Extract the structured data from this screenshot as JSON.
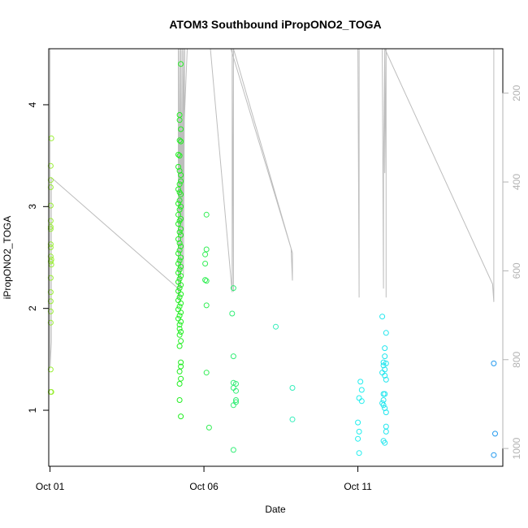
{
  "chart_data": {
    "type": "scatter",
    "title": "ATOM3 Southbound iPropONO2_TOGA",
    "xlabel": "Date",
    "ylabel": "iPropONO2_TOGA",
    "x_axis": {
      "type": "date",
      "range": [
        "2017-09-30T23:00",
        "2017-10-15T17:00"
      ],
      "ticks": [
        {
          "value": "2017-10-01",
          "label": "Oct 01"
        },
        {
          "value": "2017-10-06",
          "label": "Oct 06"
        },
        {
          "value": "2017-10-11",
          "label": "Oct 11"
        }
      ]
    },
    "y_axis": {
      "range": [
        0.45,
        4.55
      ],
      "ticks": [
        1,
        2,
        3,
        4
      ]
    },
    "y2_axis": {
      "reversed": true,
      "range": [
        1040,
        100
      ],
      "ticks": [
        200,
        400,
        600,
        800,
        1000
      ],
      "color": "#b3b3b3"
    },
    "colors": {
      "Oct01": "#99ee33",
      "Oct05": "#22ee22",
      "Oct06": "#33ee55",
      "Oct07": "#33ee77",
      "Oct08": "#33eebb",
      "Oct11": "#22eeee",
      "Oct12": "#22e6ee",
      "Oct15": "#2299ee",
      "profile": "#bdbdbd"
    },
    "series": [
      {
        "color_key": "Oct01",
        "points": [
          [
            "2017-10-01T01:00",
            3.67
          ],
          [
            "2017-10-01T00:30",
            3.4
          ],
          [
            "2017-10-01T00:30",
            3.26
          ],
          [
            "2017-10-01T00:30",
            3.19
          ],
          [
            "2017-10-01T00:30",
            3.01
          ],
          [
            "2017-10-01T00:30",
            2.86
          ],
          [
            "2017-10-01T00:30",
            2.8
          ],
          [
            "2017-10-01T00:30",
            2.78
          ],
          [
            "2017-10-01T00:30",
            2.63
          ],
          [
            "2017-10-01T00:30",
            2.6
          ],
          [
            "2017-10-01T00:30",
            2.51
          ],
          [
            "2017-10-01T00:30",
            2.46
          ],
          [
            "2017-10-01T01:00",
            2.48
          ],
          [
            "2017-10-01T01:00",
            2.43
          ],
          [
            "2017-10-01T00:30",
            2.3
          ],
          [
            "2017-10-01T00:30",
            2.16
          ],
          [
            "2017-10-01T00:30",
            2.07
          ],
          [
            "2017-10-01T00:30",
            1.97
          ],
          [
            "2017-10-01T00:30",
            1.86
          ],
          [
            "2017-10-01T00:30",
            1.4
          ],
          [
            "2017-10-01T00:30",
            1.18
          ],
          [
            "2017-10-01T01:00",
            1.18
          ]
        ]
      },
      {
        "color_key": "Oct05",
        "points": [
          [
            "2017-10-05T06:00",
            4.4
          ],
          [
            "2017-10-05T05:00",
            3.9
          ],
          [
            "2017-10-05T05:00",
            3.85
          ],
          [
            "2017-10-05T06:00",
            3.76
          ],
          [
            "2017-10-05T05:00",
            3.65
          ],
          [
            "2017-10-05T06:00",
            3.64
          ],
          [
            "2017-10-05T04:00",
            3.51
          ],
          [
            "2017-10-05T05:00",
            3.5
          ],
          [
            "2017-10-05T04:00",
            3.39
          ],
          [
            "2017-10-05T05:00",
            3.35
          ],
          [
            "2017-10-05T06:00",
            3.31
          ],
          [
            "2017-10-05T06:00",
            3.25
          ],
          [
            "2017-10-05T05:00",
            3.22
          ],
          [
            "2017-10-05T04:00",
            3.17
          ],
          [
            "2017-10-05T05:00",
            3.14
          ],
          [
            "2017-10-05T06:00",
            3.12
          ],
          [
            "2017-10-05T05:00",
            3.06
          ],
          [
            "2017-10-05T04:00",
            3.03
          ],
          [
            "2017-10-05T06:00",
            3.0
          ],
          [
            "2017-10-05T05:00",
            2.97
          ],
          [
            "2017-10-05T04:00",
            2.92
          ],
          [
            "2017-10-05T06:00",
            2.88
          ],
          [
            "2017-10-05T05:00",
            2.86
          ],
          [
            "2017-10-05T04:00",
            2.83
          ],
          [
            "2017-10-05T06:00",
            2.78
          ],
          [
            "2017-10-05T05:00",
            2.75
          ],
          [
            "2017-10-05T06:00",
            2.72
          ],
          [
            "2017-10-05T04:00",
            2.68
          ],
          [
            "2017-10-05T05:00",
            2.64
          ],
          [
            "2017-10-05T06:00",
            2.61
          ],
          [
            "2017-10-05T05:00",
            2.57
          ],
          [
            "2017-10-05T04:00",
            2.54
          ],
          [
            "2017-10-05T06:00",
            2.5
          ],
          [
            "2017-10-05T05:00",
            2.47
          ],
          [
            "2017-10-05T04:00",
            2.44
          ],
          [
            "2017-10-05T06:00",
            2.41
          ],
          [
            "2017-10-05T05:00",
            2.38
          ],
          [
            "2017-10-05T04:00",
            2.35
          ],
          [
            "2017-10-05T06:00",
            2.32
          ],
          [
            "2017-10-05T05:00",
            2.29
          ],
          [
            "2017-10-05T04:00",
            2.26
          ],
          [
            "2017-10-05T06:00",
            2.23
          ],
          [
            "2017-10-05T05:00",
            2.2
          ],
          [
            "2017-10-05T04:00",
            2.17
          ],
          [
            "2017-10-05T06:00",
            2.14
          ],
          [
            "2017-10-05T05:00",
            2.11
          ],
          [
            "2017-10-05T04:00",
            2.08
          ],
          [
            "2017-10-05T06:00",
            2.05
          ],
          [
            "2017-10-05T05:00",
            2.02
          ],
          [
            "2017-10-05T04:00",
            1.99
          ],
          [
            "2017-10-05T06:00",
            1.96
          ],
          [
            "2017-10-05T05:00",
            1.93
          ],
          [
            "2017-10-05T04:00",
            1.9
          ],
          [
            "2017-10-05T06:00",
            1.87
          ],
          [
            "2017-10-05T05:00",
            1.84
          ],
          [
            "2017-10-05T05:00",
            1.8
          ],
          [
            "2017-10-05T06:00",
            1.77
          ],
          [
            "2017-10-05T05:00",
            1.74
          ],
          [
            "2017-10-05T06:00",
            1.68
          ],
          [
            "2017-10-05T05:00",
            1.63
          ],
          [
            "2017-10-05T06:00",
            1.47
          ],
          [
            "2017-10-05T06:00",
            1.43
          ],
          [
            "2017-10-05T05:00",
            1.38
          ],
          [
            "2017-10-05T06:00",
            1.31
          ],
          [
            "2017-10-05T05:00",
            1.26
          ],
          [
            "2017-10-05T05:00",
            1.1
          ],
          [
            "2017-10-05T06:00",
            0.94
          ]
        ]
      },
      {
        "color_key": "Oct06",
        "points": [
          [
            "2017-10-06T02:00",
            2.92
          ],
          [
            "2017-10-06T02:00",
            2.58
          ],
          [
            "2017-10-06T01:00",
            2.53
          ],
          [
            "2017-10-06T01:00",
            2.44
          ],
          [
            "2017-10-06T01:00",
            2.28
          ],
          [
            "2017-10-06T02:00",
            2.27
          ],
          [
            "2017-10-06T02:00",
            2.03
          ],
          [
            "2017-10-06T02:00",
            1.37
          ],
          [
            "2017-10-06T04:00",
            0.83
          ]
        ]
      },
      {
        "color_key": "Oct07",
        "points": [
          [
            "2017-10-06T22:00",
            1.95
          ],
          [
            "2017-10-06T23:00",
            2.2
          ],
          [
            "2017-10-06T23:00",
            1.53
          ],
          [
            "2017-10-06T23:00",
            1.27
          ],
          [
            "2017-10-07T01:00",
            1.26
          ],
          [
            "2017-10-06T23:00",
            1.22
          ],
          [
            "2017-10-07T01:00",
            1.19
          ],
          [
            "2017-10-07T01:00",
            1.1
          ],
          [
            "2017-10-07T01:00",
            1.08
          ],
          [
            "2017-10-06T23:00",
            1.05
          ],
          [
            "2017-10-06T23:00",
            0.61
          ]
        ]
      },
      {
        "color_key": "Oct08",
        "points": [
          [
            "2017-10-08T08:00",
            1.82
          ],
          [
            "2017-10-08T21:00",
            1.22
          ],
          [
            "2017-10-08T21:00",
            0.91
          ]
        ]
      },
      {
        "color_key": "Oct11",
        "points": [
          [
            "2017-10-11T02:00",
            1.28
          ],
          [
            "2017-10-11T03:00",
            1.2
          ],
          [
            "2017-10-11T01:00",
            1.12
          ],
          [
            "2017-10-11T03:00",
            1.09
          ],
          [
            "2017-10-11T00:00",
            0.88
          ],
          [
            "2017-10-11T01:00",
            0.79
          ],
          [
            "2017-10-11T00:00",
            0.72
          ],
          [
            "2017-10-11T01:00",
            0.58
          ]
        ]
      },
      {
        "color_key": "Oct12",
        "points": [
          [
            "2017-10-11T19:00",
            1.92
          ],
          [
            "2017-10-11T22:00",
            1.76
          ],
          [
            "2017-10-11T21:00",
            1.61
          ],
          [
            "2017-10-11T21:00",
            1.53
          ],
          [
            "2017-10-11T20:00",
            1.47
          ],
          [
            "2017-10-11T20:00",
            1.44
          ],
          [
            "2017-10-11T22:00",
            1.46
          ],
          [
            "2017-10-11T21:00",
            1.4
          ],
          [
            "2017-10-11T19:00",
            1.37
          ],
          [
            "2017-10-11T21:00",
            1.34
          ],
          [
            "2017-10-11T22:00",
            1.3
          ],
          [
            "2017-10-11T20:00",
            1.16
          ],
          [
            "2017-10-11T21:00",
            1.16
          ],
          [
            "2017-10-11T20:00",
            1.1
          ],
          [
            "2017-10-11T19:00",
            1.07
          ],
          [
            "2017-10-11T20:00",
            1.05
          ],
          [
            "2017-10-11T21:00",
            1.02
          ],
          [
            "2017-10-11T22:00",
            0.98
          ],
          [
            "2017-10-11T22:00",
            0.84
          ],
          [
            "2017-10-11T22:00",
            0.79
          ],
          [
            "2017-10-11T20:00",
            0.7
          ],
          [
            "2017-10-11T21:00",
            0.68
          ]
        ]
      },
      {
        "color_key": "Oct15",
        "points": [
          [
            "2017-10-15T10:00",
            1.46
          ],
          [
            "2017-10-15T11:00",
            0.77
          ],
          [
            "2017-10-15T10:00",
            0.56
          ]
        ]
      }
    ],
    "profile_line": [
      [
        "2017-10-01T00:00",
        100
      ],
      [
        "2017-10-01T00:00",
        820
      ],
      [
        "2017-10-01T00:00",
        820
      ],
      [
        "2017-10-01T01:00",
        760
      ],
      [
        "2017-10-01T01:00",
        390
      ],
      [
        "2017-10-05T04:00",
        640
      ],
      [
        "2017-10-05T04:00",
        100
      ],
      [
        "2017-10-05T04:00",
        660
      ],
      [
        "2017-10-05T05:00",
        100
      ],
      [
        "2017-10-05T05:00",
        670
      ],
      [
        "2017-10-05T05:00",
        100
      ],
      [
        "2017-10-05T06:00",
        640
      ],
      [
        "2017-10-05T06:00",
        100
      ],
      [
        "2017-10-05T06:00",
        630
      ],
      [
        "2017-10-05T07:00",
        100
      ],
      [
        "2017-10-05T07:00",
        600
      ],
      [
        "2017-10-05T08:00",
        100
      ],
      [
        "2017-10-05T08:00",
        610
      ],
      [
        "2017-10-05T09:00",
        100
      ],
      [
        "2017-10-05T08:00",
        310
      ],
      [
        "2017-10-05T11:00",
        100
      ],
      [
        "2017-10-06T05:00",
        100
      ],
      [
        "2017-10-06T22:00",
        648
      ],
      [
        "2017-10-06T22:00",
        100
      ],
      [
        "2017-10-06T23:00",
        647
      ],
      [
        "2017-10-06T23:00",
        100
      ],
      [
        "2017-10-06T21:00",
        100
      ],
      [
        "2017-10-08T20:00",
        550
      ],
      [
        "2017-10-08T21:00",
        622
      ],
      [
        "2017-10-08T21:00",
        560
      ],
      [
        "2017-10-06T23:00",
        100
      ],
      [
        "2017-10-11T00:00",
        100
      ],
      [
        "2017-10-11T01:00",
        660
      ],
      [
        "2017-10-11T01:00",
        100
      ],
      [
        "2017-10-11T02:00",
        100
      ],
      [
        "2017-10-11T19:00",
        100
      ],
      [
        "2017-10-11T20:00",
        640
      ],
      [
        "2017-10-11T20:00",
        380
      ],
      [
        "2017-10-11T21:00",
        100
      ],
      [
        "2017-10-11T21:00",
        380
      ],
      [
        "2017-10-11T22:00",
        100
      ],
      [
        "2017-10-11T22:00",
        660
      ],
      [
        "2017-10-11T22:00",
        100
      ],
      [
        "2017-10-11T21:00",
        100
      ],
      [
        "2017-10-11T21:00",
        100
      ],
      [
        "2017-10-15T09:00",
        630
      ],
      [
        "2017-10-15T10:00",
        670
      ],
      [
        "2017-10-15T10:00",
        100
      ]
    ]
  }
}
